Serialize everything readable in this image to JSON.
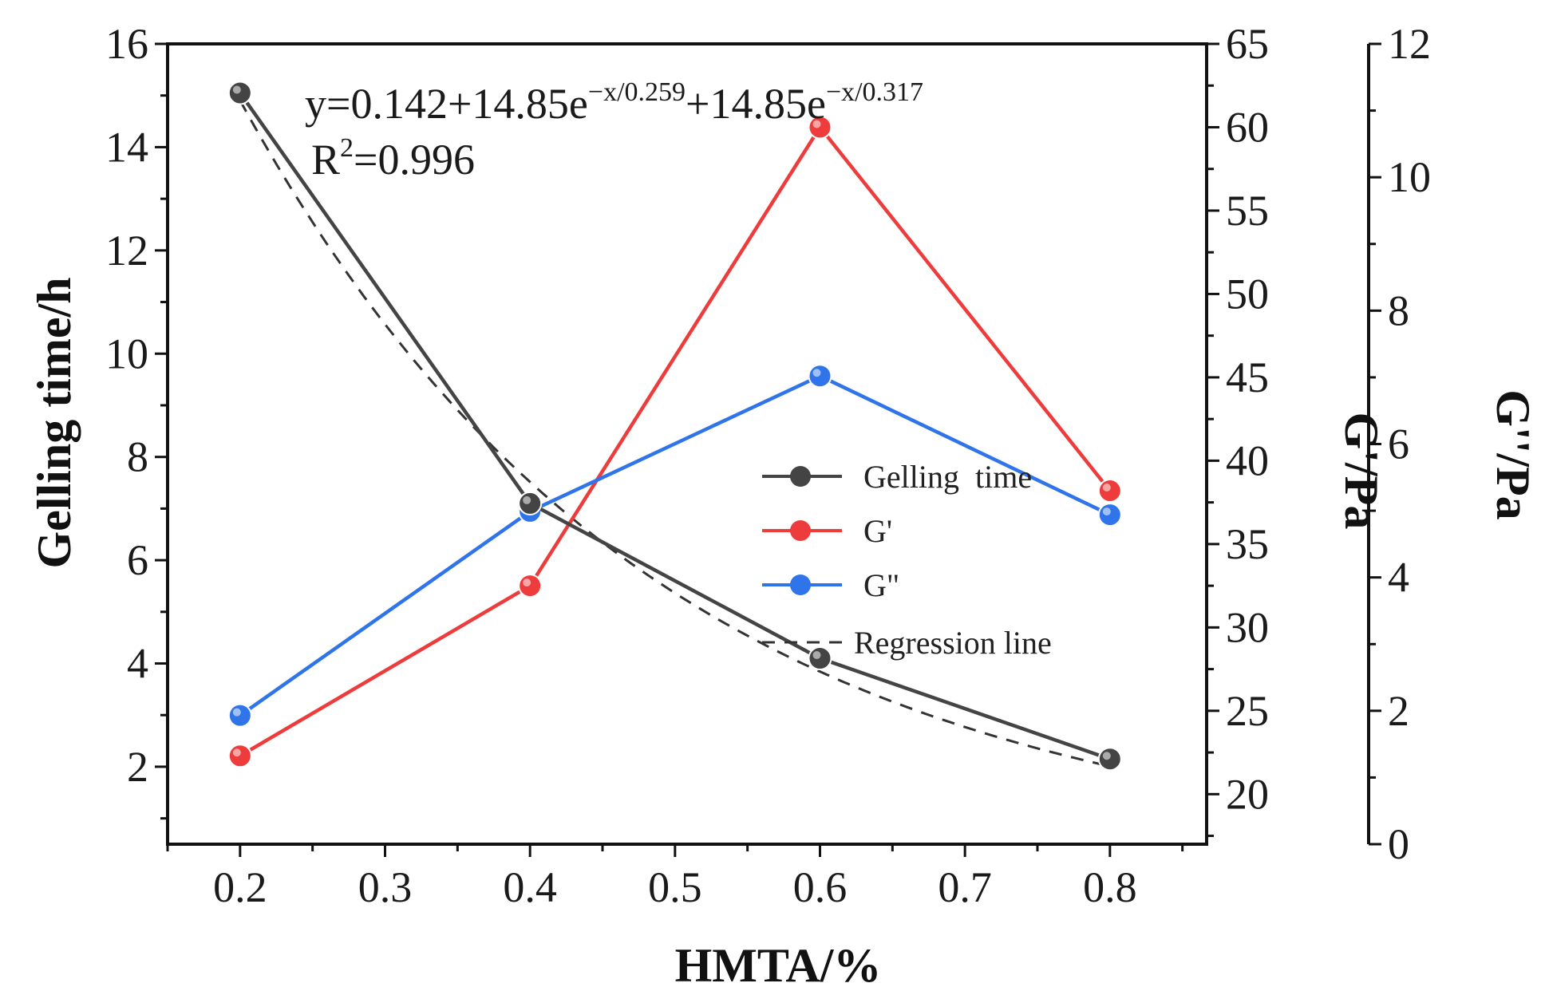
{
  "chart_data": {
    "type": "line",
    "title": "",
    "xlabel": "HMTA/%",
    "x": [
      0.2,
      0.4,
      0.6,
      0.8
    ],
    "xlim": [
      0.15,
      0.8667
    ],
    "xticks": [
      "0.2",
      "0.3",
      "0.4",
      "0.5",
      "0.6",
      "0.7",
      "0.8"
    ],
    "axes": {
      "left": {
        "label": "Gelling time/h",
        "ylim": [
          0.5,
          16
        ],
        "ticks": [
          "2",
          "4",
          "6",
          "8",
          "10",
          "12",
          "14",
          "16"
        ]
      },
      "right1": {
        "label": "G'/Pa",
        "ylim": [
          17,
          65
        ],
        "ticks": [
          "20",
          "25",
          "30",
          "35",
          "40",
          "45",
          "50",
          "55",
          "60",
          "65"
        ]
      },
      "right2": {
        "label": "G''/Pa",
        "ylim": [
          0,
          12
        ],
        "ticks": [
          "0",
          "2",
          "4",
          "6",
          "8",
          "10",
          "12"
        ]
      }
    },
    "series": [
      {
        "name": "Gelling time",
        "axis": "left",
        "color": "#444444",
        "values": [
          15.05,
          7.1,
          4.1,
          2.15
        ]
      },
      {
        "name": "G'",
        "axis": "right1",
        "color": "#ee3b3b",
        "values": [
          22.3,
          32.5,
          60.0,
          38.2
        ]
      },
      {
        "name": "G''",
        "axis": "right2",
        "color": "#2f74e8",
        "values": [
          1.93,
          4.99,
          7.02,
          4.94
        ]
      },
      {
        "name": "Regression line",
        "axis": "left",
        "color": "#333333",
        "style": "dashed",
        "formula": "0.142+14.85*exp(-x/0.259)+14.85*exp(-x/0.317)"
      }
    ],
    "annotations": {
      "equation_prefix": "y=0.142+14.85e",
      "exp1": "−x/0.259",
      "equation_mid": "+14.85e",
      "exp2": "−x/0.317",
      "r2_prefix": "R",
      "r2_sup": "2",
      "r2_value": "=0.996"
    },
    "legend": {
      "position": "center-right",
      "entries": [
        "Gelling  time",
        "G'",
        "G\"",
        "Regression line"
      ]
    }
  }
}
